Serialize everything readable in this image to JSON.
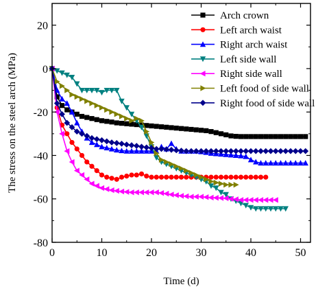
{
  "chart_data": {
    "type": "line",
    "xlabel": "Time (d)",
    "ylabel": "The stress on the steel arch (MPa)",
    "xlim": [
      0,
      52
    ],
    "ylim": [
      -80,
      30
    ],
    "xticks": [
      0,
      10,
      20,
      30,
      40,
      50
    ],
    "yticks": [
      -80,
      -60,
      -40,
      -20,
      0,
      20
    ],
    "legend_position": "top-right",
    "grid": false,
    "series": [
      {
        "name": "Arch crown",
        "color": "#000000",
        "marker": "square",
        "x": [
          0,
          1,
          2,
          3,
          4,
          5,
          6,
          7,
          8,
          9,
          10,
          11,
          12,
          13,
          14,
          15,
          16,
          17,
          18,
          19,
          20,
          21,
          22,
          23,
          24,
          25,
          26,
          27,
          28,
          29,
          30,
          31,
          32,
          33,
          34,
          35,
          36,
          37,
          38,
          39,
          40,
          41,
          42,
          43,
          44,
          45,
          46,
          47,
          48,
          49,
          50,
          51
        ],
        "y": [
          0,
          -13,
          -17,
          -19,
          -20,
          -21,
          -22,
          -22.5,
          -23,
          -23.5,
          -24,
          -24.3,
          -24.6,
          -25,
          -25.2,
          -25.4,
          -25.6,
          -25.8,
          -26,
          -26.2,
          -26.4,
          -26.6,
          -26.8,
          -27,
          -27.2,
          -27.4,
          -27.6,
          -27.8,
          -28,
          -28.2,
          -28.4,
          -28.6,
          -29,
          -29.5,
          -30,
          -30.5,
          -31,
          -31.2,
          -31.3,
          -31.3,
          -31.3,
          -31.3,
          -31.3,
          -31.3,
          -31.3,
          -31.3,
          -31.3,
          -31.3,
          -31.3,
          -31.3,
          -31.3,
          -31.3
        ]
      },
      {
        "name": "Left arch waist",
        "color": "#ff0000",
        "marker": "circle",
        "x": [
          0,
          1,
          2,
          3,
          4,
          5,
          6,
          7,
          8,
          9,
          10,
          11,
          12,
          13,
          14,
          15,
          16,
          17,
          18,
          19,
          20,
          21,
          22,
          23,
          24,
          25,
          26,
          27,
          28,
          29,
          30,
          31,
          32,
          33,
          34,
          35,
          36,
          37,
          38,
          39,
          40,
          41,
          42,
          43
        ],
        "y": [
          0,
          -18,
          -26,
          -30,
          -34,
          -37,
          -40,
          -43,
          -45,
          -47,
          -49,
          -50,
          -50.5,
          -51,
          -50,
          -49.5,
          -49,
          -49,
          -48.5,
          -49.5,
          -50,
          -50,
          -50,
          -50,
          -50,
          -50,
          -50,
          -50,
          -50,
          -50,
          -50,
          -50,
          -50,
          -50,
          -50,
          -50,
          -50,
          -50,
          -50,
          -50,
          -50,
          -50,
          -50,
          -50
        ]
      },
      {
        "name": "Right arch waist",
        "color": "#0000ff",
        "marker": "triangle-up",
        "x": [
          0,
          1,
          2,
          3,
          4,
          5,
          6,
          7,
          8,
          9,
          10,
          11,
          12,
          13,
          14,
          15,
          16,
          17,
          18,
          19,
          20,
          21,
          22,
          23,
          24,
          25,
          26,
          27,
          28,
          29,
          30,
          31,
          32,
          33,
          34,
          35,
          36,
          37,
          38,
          39,
          40,
          41,
          42,
          43,
          44,
          45,
          46,
          47,
          48,
          49,
          50,
          51
        ],
        "y": [
          0,
          -10,
          -14,
          -16,
          -20,
          -25,
          -29,
          -32,
          -34,
          -35,
          -36,
          -36.5,
          -37,
          -37.5,
          -37.8,
          -38,
          -38,
          -38,
          -38,
          -38,
          -38,
          -38,
          -36,
          -37,
          -34.5,
          -37,
          -38,
          -38,
          -38,
          -38,
          -38.3,
          -38.6,
          -39,
          -39.2,
          -39.4,
          -39.6,
          -39.8,
          -40,
          -40.2,
          -40.5,
          -42,
          -43,
          -43.5,
          -43.5,
          -43.5,
          -43.5,
          -43.5,
          -43.5,
          -43.5,
          -43.5,
          -43.5,
          -43.5
        ]
      },
      {
        "name": "Left side wall",
        "color": "#008080",
        "marker": "triangle-down",
        "x": [
          0,
          1,
          2,
          3,
          4,
          5,
          6,
          7,
          8,
          9,
          10,
          11,
          12,
          13,
          14,
          15,
          16,
          17,
          18,
          19,
          20,
          21,
          22,
          23,
          24,
          25,
          26,
          27,
          28,
          29,
          30,
          31,
          32,
          33,
          34,
          35,
          36,
          37,
          38,
          39,
          40,
          41,
          42,
          43,
          44,
          45,
          46,
          47
        ],
        "y": [
          0,
          -1,
          -2,
          -3,
          -4,
          -7,
          -10,
          -10,
          -10,
          -10,
          -11,
          -10,
          -10,
          -10,
          -15,
          -18,
          -21,
          -24,
          -27,
          -31,
          -36,
          -41,
          -43,
          -44,
          -45,
          -46,
          -47,
          -48,
          -49,
          -50,
          -51,
          -52,
          -54,
          -55,
          -57,
          -58,
          -60,
          -61,
          -62,
          -63,
          -64,
          -64.5,
          -64.5,
          -64.5,
          -64.5,
          -64.5,
          -64.5,
          -64.5
        ]
      },
      {
        "name": "Right side wall",
        "color": "#ff00ff",
        "marker": "triangle-left",
        "x": [
          0,
          1,
          2,
          3,
          4,
          5,
          6,
          7,
          8,
          9,
          10,
          11,
          12,
          13,
          14,
          15,
          16,
          17,
          18,
          19,
          20,
          21,
          22,
          23,
          24,
          25,
          26,
          27,
          28,
          29,
          30,
          31,
          32,
          33,
          34,
          35,
          36,
          37,
          38,
          39,
          40,
          41,
          42,
          43,
          44,
          45
        ],
        "y": [
          0,
          -20,
          -30,
          -38,
          -43,
          -47,
          -49,
          -51,
          -53,
          -54,
          -55,
          -55.5,
          -56,
          -56.3,
          -56.6,
          -56.8,
          -57,
          -57,
          -57,
          -57,
          -57,
          -57,
          -57.3,
          -57.6,
          -58,
          -58.3,
          -58.6,
          -58.8,
          -59,
          -59,
          -59,
          -59.2,
          -59.4,
          -59.5,
          -59.6,
          -59.7,
          -60,
          -60.2,
          -60.5,
          -60.5,
          -60.5,
          -60.5,
          -60.5,
          -60.5,
          -60.5,
          -60.5
        ]
      },
      {
        "name": "Left food of side wall",
        "color": "#808000",
        "marker": "triangle-right",
        "x": [
          0,
          1,
          2,
          3,
          4,
          5,
          6,
          7,
          8,
          9,
          10,
          11,
          12,
          13,
          14,
          15,
          16,
          17,
          18,
          19,
          20,
          21,
          22,
          23,
          24,
          25,
          26,
          27,
          28,
          29,
          30,
          31,
          32,
          33,
          34,
          35,
          36,
          37
        ],
        "y": [
          0,
          -6,
          -8,
          -10,
          -12,
          -13,
          -14,
          -15,
          -16,
          -17,
          -18,
          -19,
          -20,
          -21,
          -22,
          -23,
          -24,
          -23,
          -24,
          -29,
          -34,
          -39,
          -42,
          -43,
          -44,
          -45,
          -46,
          -47,
          -48,
          -49,
          -50,
          -51,
          -52,
          -52.5,
          -53,
          -53.5,
          -53.5,
          -53.5
        ]
      },
      {
        "name": "Right food of side wall",
        "color": "#00008b",
        "marker": "diamond",
        "x": [
          0,
          1,
          2,
          3,
          4,
          5,
          6,
          7,
          8,
          9,
          10,
          11,
          12,
          13,
          14,
          15,
          16,
          17,
          18,
          19,
          20,
          21,
          22,
          23,
          24,
          25,
          26,
          27,
          28,
          29,
          30,
          31,
          32,
          33,
          34,
          35,
          36,
          37,
          38,
          39,
          40,
          41,
          42,
          43,
          44,
          45,
          46,
          47,
          48,
          49,
          50,
          51
        ],
        "y": [
          0,
          -16,
          -21,
          -25,
          -27,
          -29,
          -30,
          -31,
          -32,
          -32.5,
          -33,
          -33.5,
          -34,
          -34.3,
          -34.6,
          -35,
          -35.3,
          -35.6,
          -36,
          -36.3,
          -36.6,
          -37,
          -37,
          -37.2,
          -37.4,
          -37.6,
          -37.8,
          -38,
          -38,
          -38,
          -38,
          -38,
          -38,
          -38,
          -38,
          -38,
          -38,
          -38,
          -38,
          -38,
          -38,
          -38,
          -38,
          -38,
          -38,
          -38,
          -38,
          -38,
          -38,
          -38,
          -38,
          -38
        ]
      }
    ]
  }
}
